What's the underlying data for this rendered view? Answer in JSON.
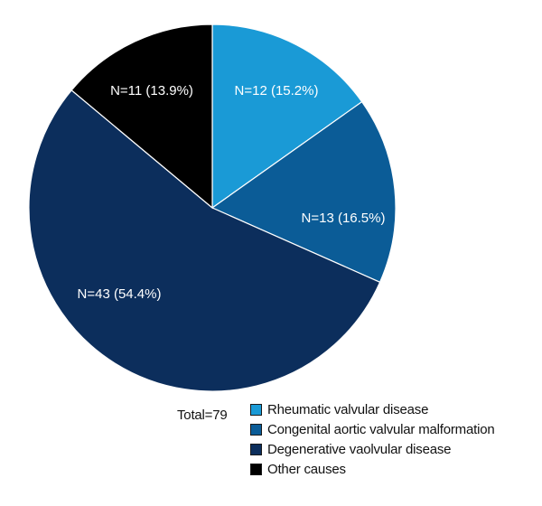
{
  "chart_data": {
    "type": "pie",
    "start_angle_deg": 0,
    "direction": "clockwise",
    "slices": [
      {
        "name": "Rheumatic valvular disease",
        "n": 12,
        "percent": 15.2,
        "label": "N=12 (15.2%)",
        "color": "#1a9ad6"
      },
      {
        "name": "Congenital aortic valvular malformation",
        "n": 13,
        "percent": 16.5,
        "label": "N=13 (16.5%)",
        "color": "#0b5c97"
      },
      {
        "name": "Degenerative vaolvular disease",
        "n": 43,
        "percent": 54.4,
        "label": "N=43 (54.4%)",
        "color": "#0c2e5c"
      },
      {
        "name": "Other causes",
        "n": 11,
        "percent": 13.9,
        "label": "N=11 (13.9%)",
        "color": "#000000"
      }
    ],
    "total_label": "Total=79",
    "legend": {
      "position": "bottom-right"
    }
  }
}
